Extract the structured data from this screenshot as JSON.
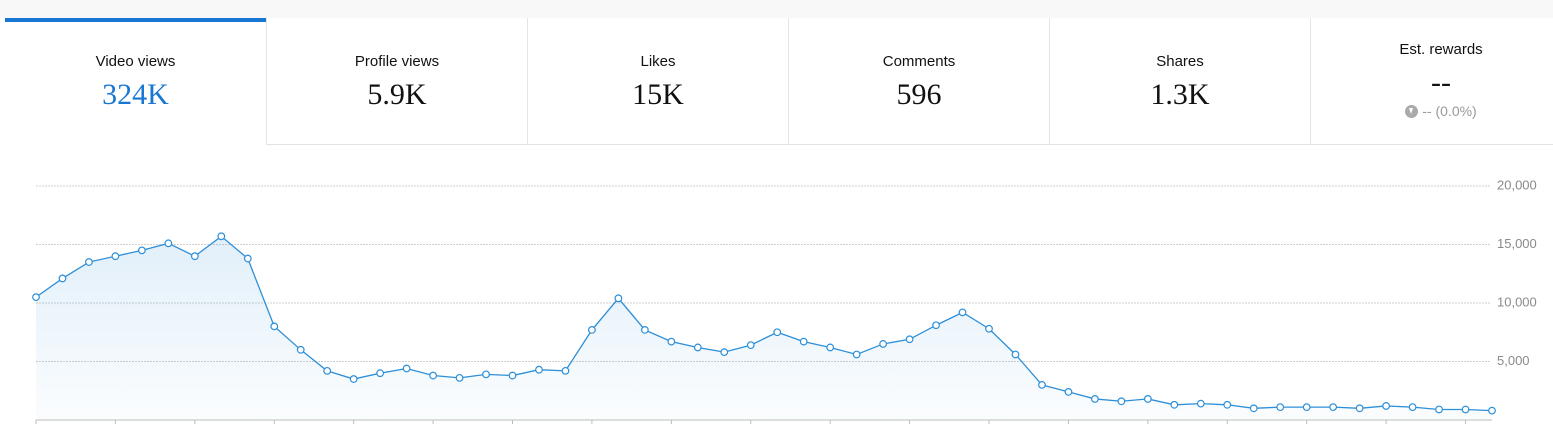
{
  "tabs": [
    {
      "label": "Video views",
      "value": "324K"
    },
    {
      "label": "Profile views",
      "value": "5.9K"
    },
    {
      "label": "Likes",
      "value": "15K"
    },
    {
      "label": "Comments",
      "value": "596"
    },
    {
      "label": "Shares",
      "value": "1.3K"
    },
    {
      "label": "Est. rewards",
      "value": "--",
      "change": "-- (0.0%)"
    }
  ],
  "chart_data": {
    "type": "line",
    "color": "#2d8fd8",
    "grid": true,
    "ylim": [
      0,
      20000
    ],
    "yticks": [
      {
        "value": 5000,
        "label": "5,000"
      },
      {
        "value": 10000,
        "label": "10,000"
      },
      {
        "value": 15000,
        "label": "15,000"
      },
      {
        "value": 20000,
        "label": "20,000"
      }
    ],
    "values": [
      10500,
      12100,
      13500,
      14000,
      14500,
      15100,
      14000,
      15700,
      13800,
      8000,
      6000,
      4200,
      3500,
      4000,
      4400,
      3800,
      3600,
      3900,
      3800,
      4300,
      4200,
      7700,
      10400,
      7700,
      6700,
      6200,
      5800,
      6400,
      7500,
      6700,
      6200,
      5600,
      6500,
      6900,
      8100,
      9200,
      7800,
      5600,
      3000,
      2400,
      1800,
      1600,
      1800,
      1300,
      1400,
      1300,
      1000,
      1100,
      1100,
      1100,
      1000,
      1200,
      1100,
      900,
      900,
      800
    ]
  }
}
